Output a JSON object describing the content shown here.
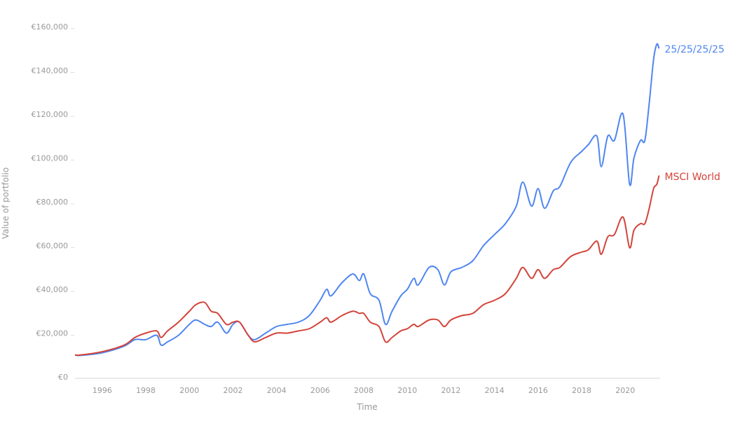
{
  "chart_data": {
    "type": "line",
    "title": "",
    "xlabel": "Time",
    "ylabel": "Value of portfolio",
    "xlim": [
      1994.75,
      2021.6
    ],
    "ylim": [
      0,
      160000
    ],
    "grid": false,
    "legend": "inline-right",
    "x_ticks": [
      "1996",
      "1998",
      "2000",
      "2002",
      "2004",
      "2006",
      "2008",
      "2010",
      "2012",
      "2014",
      "2016",
      "2018",
      "2020"
    ],
    "x_tick_values": [
      1996,
      1998,
      2000,
      2002,
      2004,
      2006,
      2008,
      2010,
      2012,
      2014,
      2016,
      2018,
      2020
    ],
    "y_ticks": [
      "€0",
      "€20,000",
      "€40,000",
      "€60,000",
      "€80,000",
      "€100,000",
      "€120,000",
      "€140,000",
      "€160,000"
    ],
    "y_tick_values": [
      0,
      20000,
      40000,
      60000,
      80000,
      100000,
      120000,
      140000,
      160000
    ],
    "x": [
      1994.75,
      1995.0,
      1996.0,
      1997.0,
      1997.5,
      1998.0,
      1998.5,
      1998.7,
      1999.0,
      1999.5,
      2000.0,
      2000.3,
      2000.7,
      2001.0,
      2001.3,
      2001.7,
      2002.0,
      2002.3,
      2002.7,
      2003.0,
      2003.5,
      2004.0,
      2004.5,
      2005.0,
      2005.5,
      2006.0,
      2006.3,
      2006.5,
      2007.0,
      2007.5,
      2007.8,
      2008.0,
      2008.3,
      2008.7,
      2009.0,
      2009.3,
      2009.7,
      2010.0,
      2010.3,
      2010.5,
      2011.0,
      2011.4,
      2011.7,
      2012.0,
      2012.5,
      2013.0,
      2013.5,
      2014.0,
      2014.5,
      2015.0,
      2015.3,
      2015.7,
      2016.0,
      2016.3,
      2016.7,
      2017.0,
      2017.5,
      2018.0,
      2018.3,
      2018.7,
      2018.9,
      2019.2,
      2019.5,
      2019.9,
      2020.2,
      2020.4,
      2020.7,
      2020.9,
      2021.1,
      2021.3,
      2021.45,
      2021.55
    ],
    "series": [
      {
        "name": "25/25/25/25",
        "color": "#4f86f0",
        "values": [
          10000,
          9800,
          11000,
          14000,
          17000,
          17000,
          19000,
          14500,
          16000,
          19000,
          24000,
          26000,
          24000,
          23000,
          25000,
          20000,
          24000,
          25000,
          19000,
          17000,
          20000,
          23000,
          24000,
          25000,
          28000,
          35000,
          40000,
          37000,
          43000,
          47000,
          44000,
          47000,
          38000,
          35000,
          24000,
          30000,
          37000,
          40000,
          45000,
          42000,
          50000,
          49000,
          42000,
          48000,
          50000,
          53000,
          60000,
          65000,
          70000,
          78000,
          89000,
          78000,
          86000,
          77000,
          85000,
          87000,
          98000,
          103000,
          106000,
          110000,
          96000,
          110000,
          108000,
          120000,
          88000,
          100000,
          108000,
          108000,
          125000,
          145000,
          152000,
          150000
        ]
      },
      {
        "name": "MSCI World",
        "color": "#d2443a",
        "values": [
          10000,
          10000,
          11500,
          14500,
          18000,
          20000,
          21000,
          18000,
          21000,
          25000,
          30000,
          33000,
          34000,
          30000,
          29000,
          24000,
          25000,
          25000,
          19000,
          16000,
          18000,
          20000,
          20000,
          21000,
          22000,
          25000,
          27000,
          25000,
          28000,
          30000,
          29000,
          29000,
          25000,
          23000,
          16000,
          18000,
          21000,
          22000,
          24000,
          23000,
          26000,
          26000,
          23000,
          26000,
          28000,
          29000,
          33000,
          35000,
          38000,
          45000,
          50000,
          45000,
          49000,
          45000,
          49000,
          50000,
          55000,
          57000,
          58000,
          62000,
          56000,
          64000,
          65000,
          73000,
          59000,
          67000,
          70000,
          70000,
          77000,
          86000,
          88000,
          92000
        ]
      }
    ]
  }
}
